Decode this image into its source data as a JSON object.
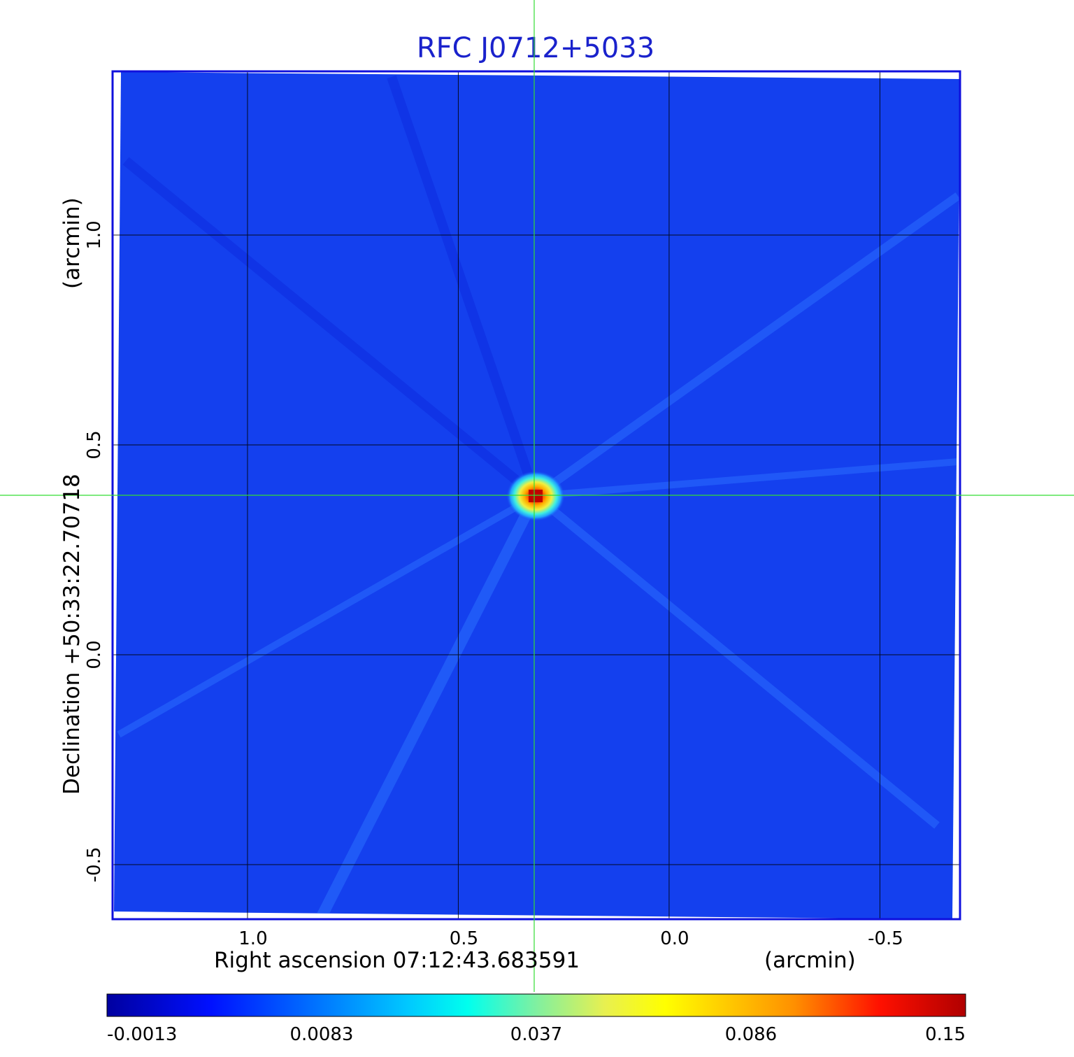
{
  "chart_data": {
    "type": "heatmap",
    "title": "RFC J0712+5033",
    "xlabel": "Right ascension  07:12:43.683591",
    "xunit": "(arcmin)",
    "ylabel": "Declination  +50:33:22.70718",
    "yunit": "(arcmin)",
    "x_ticks": [
      1.0,
      0.5,
      0.0,
      -0.5
    ],
    "x_tick_labels": [
      "1.0",
      "0.5",
      "0.0",
      "-0.5"
    ],
    "y_ticks": [
      1.0,
      0.5,
      0.0,
      -0.5
    ],
    "y_tick_labels": [
      "1.0",
      "0.5",
      "0.0",
      "-0.5"
    ],
    "xlim": [
      1.32,
      -0.69
    ],
    "ylim": [
      -0.63,
      1.39
    ],
    "grid": true,
    "crosshair": {
      "x": 0.32,
      "y": 0.38,
      "color": "#33dd33"
    },
    "source_peak": {
      "x": 0.32,
      "y": 0.38,
      "value": 0.15
    },
    "colorbar": {
      "placement": "bottom",
      "colormap": "jet",
      "tick_values": [
        -0.0013,
        0.0083,
        0.037,
        0.086,
        0.15
      ],
      "tick_labels": [
        "-0.0013",
        "0.0083",
        "0.037",
        "0.086",
        "0.15"
      ],
      "range": [
        -0.0013,
        0.15
      ]
    },
    "background_color": "#1440ee",
    "frame_color": "#1010dd"
  }
}
